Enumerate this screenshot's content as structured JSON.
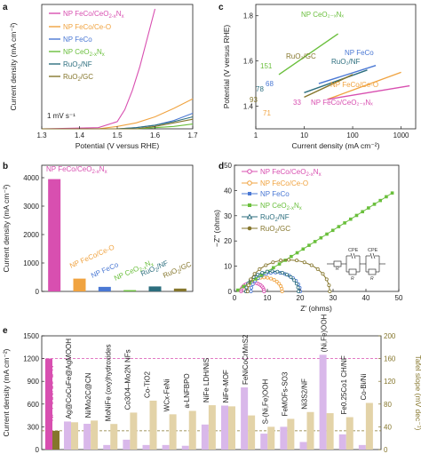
{
  "panels": [
    "a",
    "b",
    "c",
    "d",
    "e"
  ],
  "colors": {
    "NP FeCo/CeO2-xNx": "#d84fb0",
    "NP FeCo/Ce-O": "#f0a340",
    "NP FeCo": "#4a78d4",
    "NP CeO2-xNx": "#6abf3c",
    "RuO2/NF": "#2c6e7e",
    "RuO2/GC": "#85762c",
    "literature_current": "#d9b8ea",
    "literature_tafel": "#e3d3a8"
  },
  "chart_data": [
    {
      "panel": "a",
      "type": "line",
      "xlabel": "Potential (V versus RHE)",
      "ylabel": "Current density (mA cm⁻²)",
      "xlim": [
        1.3,
        1.7
      ],
      "xticks": [
        "1.3",
        "1.4",
        "1.5",
        "1.6",
        "1.7"
      ],
      "annotation": "1 mV s⁻¹",
      "legend": [
        "NP FeCo/CeO2-xNx",
        "NP FeCo/Ce-O",
        "NP FeCo",
        "NP CeO2-xNx",
        "RuO2/NF",
        "RuO2/GC"
      ],
      "series": [
        {
          "name": "NP FeCo/CeO2-xNx",
          "x": [
            1.3,
            1.45,
            1.5,
            1.52,
            1.54,
            1.56,
            1.58,
            1.6
          ],
          "y": [
            0,
            0.01,
            0.06,
            0.16,
            0.32,
            0.52,
            0.76,
            1.0
          ]
        },
        {
          "name": "NP FeCo/Ce-O",
          "x": [
            1.3,
            1.45,
            1.5,
            1.55,
            1.6,
            1.65,
            1.7
          ],
          "y": [
            0,
            0.0,
            0.02,
            0.05,
            0.1,
            0.17,
            0.25
          ]
        },
        {
          "name": "NP FeCo",
          "x": [
            1.3,
            1.5,
            1.55,
            1.6,
            1.65,
            1.7
          ],
          "y": [
            0,
            0.0,
            0.01,
            0.03,
            0.07,
            0.13
          ]
        },
        {
          "name": "NP CeO2-xNx",
          "x": [
            1.3,
            1.55,
            1.6,
            1.65,
            1.7
          ],
          "y": [
            0,
            0.0,
            0.01,
            0.02,
            0.04
          ]
        },
        {
          "name": "RuO2/NF",
          "x": [
            1.3,
            1.5,
            1.55,
            1.6,
            1.65,
            1.7
          ],
          "y": [
            0,
            0.0,
            0.01,
            0.03,
            0.06,
            0.1
          ]
        },
        {
          "name": "RuO2/GC",
          "x": [
            1.3,
            1.55,
            1.6,
            1.65,
            1.7
          ],
          "y": [
            0,
            0.0,
            0.02,
            0.05,
            0.08
          ]
        }
      ]
    },
    {
      "panel": "b",
      "type": "bar",
      "ylabel": "Current density (mA cm⁻²)",
      "ylim": [
        0,
        4000
      ],
      "yticks": [
        "0",
        "1000",
        "2000",
        "3000",
        "4000"
      ],
      "categories": [
        "NP FeCo/CeO2-xNx",
        "NP FeCo/Ce-O",
        "NP FeCo",
        "NP CeO2-xNx",
        "RuO2/NF",
        "RuO2/GC"
      ],
      "values": [
        3950,
        450,
        160,
        45,
        175,
        100
      ]
    },
    {
      "panel": "c",
      "type": "line",
      "xlabel": "Current density (mA cm⁻²)",
      "ylabel": "Potential (V versus RHE)",
      "xscale": "log",
      "xlim": [
        1,
        2000
      ],
      "ylim": [
        1.3,
        1.85
      ],
      "xticks": [
        "1",
        "10",
        "100",
        "1000"
      ],
      "yticks": [
        "1.4",
        "1.6",
        "1.8"
      ],
      "series": [
        {
          "name": "NP CeO2-xNx",
          "tafel": "151",
          "x": [
            3,
            50
          ],
          "y": [
            1.54,
            1.72
          ]
        },
        {
          "name": "NP FeCo",
          "tafel": "68",
          "x": [
            20,
            300
          ],
          "y": [
            1.5,
            1.58
          ]
        },
        {
          "name": "RuO2/NF",
          "tafel": "78",
          "x": [
            10,
            200
          ],
          "y": [
            1.46,
            1.56
          ]
        },
        {
          "name": "RuO2/GC",
          "tafel": "93",
          "x": [
            10,
            100
          ],
          "y": [
            1.44,
            1.54
          ]
        },
        {
          "name": "NP FeCo/Ce-O",
          "tafel": "71",
          "x": [
            30,
            1000
          ],
          "y": [
            1.43,
            1.55
          ]
        },
        {
          "name": "NP FeCo/CeO2-xNx",
          "tafel": "33",
          "x": [
            30,
            1500
          ],
          "y": [
            1.43,
            1.49
          ]
        }
      ],
      "labels": {
        "NP CeO2-xNx": "NP CeO₂₋ₓNₓ",
        "NP FeCo": "NP FeCo",
        "RuO2/NF": "RuO₂/NF",
        "RuO2/GC": "RuO₂/GC",
        "NP FeCo/Ce-O": "NP FeCo/Ce-O",
        "NP FeCo/CeO2-xNx": "NP FeCo/CeO₂₋ₓNₓ"
      }
    },
    {
      "panel": "d",
      "type": "scatter",
      "xlabel": "Z′ (ohms)",
      "ylabel": "−Z″ (ohms)",
      "xlim": [
        0,
        50
      ],
      "ylim": [
        0,
        50
      ],
      "xticks": [
        "0",
        "10",
        "20",
        "30",
        "40",
        "50"
      ],
      "yticks": [
        "0",
        "10",
        "20",
        "30",
        "40",
        "50"
      ],
      "circuit_labels": [
        "CPE",
        "CPE",
        "R",
        "R",
        "R"
      ],
      "series": [
        {
          "name": "NP FeCo/CeO2-xNx",
          "center": 5.5,
          "radius": 3.5
        },
        {
          "name": "NP FeCo/Ce-O",
          "center": 9,
          "radius": 5.5
        },
        {
          "name": "NP FeCo",
          "center": 12.5,
          "radius": 7.5
        },
        {
          "name": "NP CeO2-xNx",
          "line": [
            [
              1,
              0.5
            ],
            [
              48,
              39
            ]
          ]
        },
        {
          "name": "RuO2/NF",
          "center": 11.5,
          "radius": 8
        },
        {
          "name": "RuO2/GC",
          "center": 16.5,
          "radius": 12.5
        }
      ]
    },
    {
      "panel": "e",
      "type": "bar",
      "ylabel": "Current density (mA cm⁻²)",
      "y2label": "Tafel slope (mV dec⁻¹)",
      "ylim": [
        0,
        1500
      ],
      "y2lim": [
        0,
        200
      ],
      "yticks": [
        "0",
        "300",
        "600",
        "900",
        "1200",
        "1500"
      ],
      "y2ticks": [
        "0",
        "40",
        "80",
        "120",
        "160",
        "200"
      ],
      "ref_current": 1200,
      "ref_tafel": 33,
      "highlight": {
        "label": "NP FeCo/Ce-O-N",
        "current": 1200,
        "tafel": 33
      },
      "categories": [
        "Ag@CoCuFe@AgMOOH",
        "Ni/Mo2C@CN",
        "MoNiFe (oxy)hydroxides",
        "Co3O4–Mo2N NFs",
        "Co-TiO2",
        "WCx-FeNi",
        "a-LNFBPO",
        "NiFe LDH/NiS",
        "NiFe-MOF",
        "FeNiCoCrMnS2",
        "S-(Ni,Fe)OOH",
        "FeMOFs-SO3",
        "Ni3S2/NF",
        "(Ni,Fe)OOH",
        "Fe0.25Co1 CH/NF",
        "Co-Bi/Ni"
      ],
      "current": [
        370,
        340,
        60,
        130,
        60,
        60,
        50,
        330,
        580,
        820,
        210,
        300,
        100,
        1250,
        200,
        60
      ],
      "tafel": [
        48,
        51,
        45,
        65,
        86,
        62,
        68,
        78,
        76,
        60,
        40,
        54,
        66,
        64,
        57,
        82
      ]
    }
  ]
}
